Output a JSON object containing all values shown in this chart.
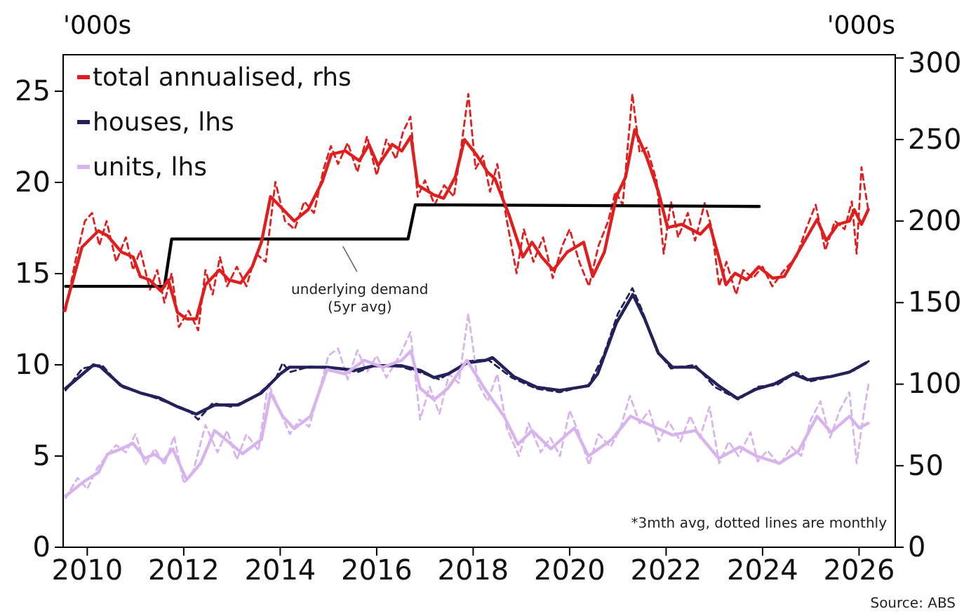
{
  "chart_data": {
    "type": "line",
    "ylabel": "'000s",
    "y2label": "'000s",
    "legend": "top left",
    "grid": false,
    "xlim": [
      2009.5,
      2026.75
    ],
    "xticks": [
      2010,
      2012,
      2014,
      2016,
      2018,
      2020,
      2022,
      2024,
      2026
    ],
    "ylim": [
      0,
      27
    ],
    "yticks": [
      0,
      5,
      10,
      15,
      20,
      25
    ],
    "y2lim": [
      0,
      302
    ],
    "y2ticks": [
      0,
      50,
      100,
      150,
      200,
      250,
      300
    ],
    "annotations": [
      "*3mth avg, dotted lines are monthly",
      "Source: ABS",
      {
        "text": "underlying demand\n(5yr avg)",
        "x": 2015.3,
        "y": 16.8
      }
    ],
    "series": [
      {
        "color": "#e01e1e",
        "axis": "y2",
        "line_style": "dashed",
        "x": [
          2009.55,
          2009.75,
          2009.95,
          2010.1,
          2010.25,
          2010.4,
          2010.6,
          2010.8,
          2010.95,
          2011.1,
          2011.3,
          2011.45,
          2011.6,
          2011.75,
          2011.9,
          2012.1,
          2012.3,
          2012.45,
          2012.6,
          2012.75,
          2012.9,
          2013.1,
          2013.3,
          2013.5,
          2013.7,
          2013.9,
          2014.1,
          2014.3,
          2014.5,
          2014.7,
          2014.9,
          2015.05,
          2015.2,
          2015.4,
          2015.6,
          2015.8,
          2016.0,
          2016.2,
          2016.4,
          2016.55,
          2016.7,
          2016.85,
          2017.0,
          2017.2,
          2017.4,
          2017.6,
          2017.75,
          2017.9,
          2018.05,
          2018.2,
          2018.35,
          2018.5,
          2018.7,
          2018.9,
          2019.05,
          2019.25,
          2019.45,
          2019.65,
          2019.85,
          2020.0,
          2020.2,
          2020.4,
          2020.6,
          2020.8,
          2020.95,
          2021.1,
          2021.3,
          2021.45,
          2021.6,
          2021.8,
          2021.95,
          2022.1,
          2022.25,
          2022.45,
          2022.6,
          2022.8,
          2022.95,
          2023.1,
          2023.25,
          2023.45,
          2023.6,
          2023.8,
          2024.0,
          2024.2,
          2024.45,
          2024.7,
          2024.9,
          2025.1,
          2025.3,
          2025.5,
          2025.7,
          2025.85,
          2025.95,
          2026.05,
          2026.2
        ],
        "values": [
          145,
          175,
          200,
          205,
          185,
          200,
          175,
          190,
          170,
          182,
          158,
          170,
          150,
          168,
          135,
          145,
          133,
          170,
          155,
          178,
          160,
          172,
          160,
          180,
          175,
          224,
          200,
          195,
          212,
          205,
          232,
          246,
          235,
          248,
          230,
          252,
          228,
          250,
          238,
          255,
          264,
          215,
          225,
          210,
          222,
          215,
          245,
          278,
          232,
          240,
          218,
          235,
          200,
          168,
          195,
          175,
          190,
          165,
          185,
          195,
          175,
          160,
          185,
          200,
          218,
          210,
          278,
          242,
          245,
          225,
          180,
          212,
          190,
          205,
          188,
          211,
          195,
          160,
          175,
          155,
          170,
          165,
          172,
          160,
          170,
          178,
          195,
          210,
          182,
          200,
          195,
          212,
          180,
          233,
          205
        ]
      },
      {
        "color": "#23205a",
        "line_style": "dashed",
        "x": [
          2009.55,
          2009.9,
          2010.3,
          2010.7,
          2011.2,
          2011.7,
          2012.1,
          2012.3,
          2012.6,
          2013.0,
          2013.5,
          2013.9,
          2014.05,
          2014.2,
          2014.6,
          2015.2,
          2015.6,
          2016.0,
          2016.5,
          2017.0,
          2017.3,
          2017.9,
          2018.3,
          2018.8,
          2019.3,
          2019.8,
          2020.4,
          2020.7,
          2021.0,
          2021.3,
          2021.5,
          2021.8,
          2022.1,
          2022.6,
          2023.0,
          2023.5,
          2023.9,
          2024.3,
          2024.7,
          2025.0,
          2025.5,
          2025.9,
          2026.2
        ],
        "values": [
          8.6,
          9.8,
          10.0,
          8.8,
          8.4,
          7.9,
          7.5,
          7.0,
          7.9,
          7.7,
          8.3,
          9.2,
          10.1,
          9.6,
          9.9,
          9.8,
          9.6,
          10.0,
          9.9,
          9.5,
          9.2,
          10.2,
          10.3,
          9.3,
          8.7,
          8.5,
          8.9,
          10.5,
          12.8,
          14.2,
          13.0,
          10.8,
          9.8,
          10.0,
          8.8,
          8.1,
          8.8,
          8.9,
          9.6,
          9.1,
          9.4,
          9.7,
          10.2
        ]
      },
      {
        "color": "#d8b4ee",
        "line_style": "dashed",
        "x": [
          2009.55,
          2009.8,
          2010.0,
          2010.2,
          2010.4,
          2010.6,
          2010.8,
          2011.0,
          2011.2,
          2011.4,
          2011.6,
          2011.8,
          2012.0,
          2012.2,
          2012.45,
          2012.7,
          2012.9,
          2013.1,
          2013.3,
          2013.55,
          2013.75,
          2014.0,
          2014.2,
          2014.4,
          2014.6,
          2014.8,
          2015.0,
          2015.2,
          2015.4,
          2015.6,
          2015.8,
          2016.0,
          2016.2,
          2016.5,
          2016.7,
          2016.9,
          2017.1,
          2017.3,
          2017.5,
          2017.7,
          2017.9,
          2018.1,
          2018.3,
          2018.5,
          2018.7,
          2018.95,
          2019.15,
          2019.4,
          2019.6,
          2019.8,
          2020.0,
          2020.2,
          2020.4,
          2020.6,
          2020.85,
          2021.05,
          2021.25,
          2021.45,
          2021.65,
          2021.85,
          2022.05,
          2022.3,
          2022.5,
          2022.7,
          2022.9,
          2023.1,
          2023.3,
          2023.5,
          2023.75,
          2023.9,
          2024.1,
          2024.35,
          2024.6,
          2024.8,
          2025.0,
          2025.2,
          2025.4,
          2025.6,
          2025.8,
          2025.95,
          2026.1,
          2026.2
        ],
        "values": [
          2.7,
          3.8,
          3.2,
          4.3,
          5.0,
          5.6,
          5.2,
          6.2,
          4.5,
          5.4,
          4.5,
          6.1,
          3.5,
          4.2,
          6.7,
          5.2,
          6.4,
          4.8,
          6.2,
          5.3,
          9.0,
          7.4,
          6.2,
          7.0,
          6.6,
          8.5,
          10.5,
          10.9,
          9.2,
          10.8,
          9.6,
          10.5,
          9.3,
          10.6,
          11.8,
          7.0,
          8.8,
          7.3,
          9.5,
          9.0,
          12.8,
          9.0,
          8.0,
          9.5,
          6.5,
          5.0,
          6.8,
          5.2,
          6.0,
          5.0,
          7.5,
          6.2,
          4.5,
          6.2,
          5.5,
          6.5,
          8.3,
          6.8,
          7.5,
          5.8,
          6.9,
          5.8,
          7.2,
          6.0,
          7.7,
          4.6,
          5.8,
          5.0,
          6.3,
          4.7,
          5.3,
          4.5,
          5.5,
          5.0,
          7.0,
          8.0,
          6.0,
          7.5,
          8.5,
          4.6,
          7.4,
          9.0
        ]
      },
      {
        "color": "#000000",
        "axis": "y2",
        "x": [
          2009.55,
          2011.6,
          2011.75,
          2016.65,
          2016.8,
          2023.93
        ],
        "values": [
          160,
          160,
          189,
          189,
          210,
          209
        ]
      },
      {
        "name": "total annualised, rhs",
        "color": "#e01e1e",
        "axis": "y2",
        "x": [
          2009.53,
          2009.89,
          2010.23,
          2010.42,
          2010.71,
          2010.95,
          2011.1,
          2011.29,
          2011.53,
          2011.68,
          2011.87,
          2012.06,
          2012.26,
          2012.45,
          2012.74,
          2012.93,
          2013.18,
          2013.42,
          2013.61,
          2013.8,
          2014.0,
          2014.29,
          2014.58,
          2014.87,
          2015.06,
          2015.35,
          2015.64,
          2015.84,
          2016.03,
          2016.32,
          2016.52,
          2016.71,
          2016.85,
          2017.19,
          2017.39,
          2017.63,
          2017.82,
          2018.06,
          2018.3,
          2018.45,
          2018.74,
          2019.03,
          2019.22,
          2019.42,
          2019.66,
          2019.95,
          2020.29,
          2020.48,
          2020.72,
          2020.97,
          2021.16,
          2021.35,
          2021.6,
          2021.84,
          2022.03,
          2022.32,
          2022.71,
          2022.9,
          2023.09,
          2023.24,
          2023.43,
          2023.67,
          2023.92,
          2024.21,
          2024.45,
          2024.74,
          2025.13,
          2025.32,
          2025.56,
          2025.8,
          2025.9,
          2026.05,
          2026.19
        ],
        "values": [
          145,
          184,
          194,
          191,
          181,
          178,
          166,
          164,
          157,
          164,
          144,
          140,
          140,
          161,
          170,
          164,
          162,
          172,
          187,
          215,
          209,
          200,
          207,
          224,
          241,
          243,
          237,
          247,
          234,
          247,
          243,
          252,
          222,
          216,
          214,
          227,
          250,
          241,
          230,
          226,
          204,
          178,
          187,
          178,
          170,
          181,
          187,
          166,
          181,
          215,
          227,
          256,
          239,
          218,
          196,
          198,
          192,
          198,
          178,
          161,
          168,
          164,
          172,
          165,
          166,
          181,
          201,
          188,
          198,
          200,
          207,
          198,
          207
        ]
      },
      {
        "name": "houses, lhs",
        "color": "#23205a",
        "x": [
          2009.55,
          2010.13,
          2010.27,
          2010.71,
          2011.1,
          2011.48,
          2011.87,
          2012.26,
          2012.64,
          2013.13,
          2013.61,
          2014.0,
          2014.19,
          2014.97,
          2015.55,
          2015.94,
          2016.52,
          2016.9,
          2017.19,
          2017.48,
          2017.87,
          2018.26,
          2018.4,
          2018.84,
          2019.32,
          2019.8,
          2020.39,
          2020.58,
          2020.97,
          2021.31,
          2021.55,
          2021.84,
          2022.13,
          2022.61,
          2023.09,
          2023.48,
          2023.87,
          2024.26,
          2024.64,
          2024.93,
          2025.42,
          2025.8,
          2026.14
        ],
        "values": [
          8.7,
          10.0,
          9.9,
          8.85,
          8.46,
          8.2,
          7.7,
          7.3,
          7.8,
          7.8,
          8.46,
          9.5,
          9.87,
          9.87,
          9.7,
          9.95,
          9.95,
          9.7,
          9.3,
          9.5,
          10.1,
          10.25,
          10.4,
          9.36,
          8.77,
          8.6,
          8.85,
          9.5,
          12.3,
          13.85,
          12.56,
          10.64,
          9.87,
          9.87,
          8.85,
          8.15,
          8.67,
          8.97,
          9.5,
          9.18,
          9.36,
          9.6,
          10.1
        ]
      },
      {
        "name": "units, lhs",
        "color": "#d8b4ee",
        "x": [
          2009.55,
          2009.93,
          2010.23,
          2010.42,
          2010.71,
          2010.95,
          2011.19,
          2011.39,
          2011.58,
          2011.77,
          2012.06,
          2012.35,
          2012.64,
          2012.93,
          2013.22,
          2013.61,
          2013.8,
          2014.05,
          2014.29,
          2014.63,
          2014.97,
          2015.35,
          2015.74,
          2016.13,
          2016.52,
          2016.71,
          2016.9,
          2017.19,
          2017.48,
          2017.87,
          2018.26,
          2018.64,
          2018.93,
          2019.22,
          2019.61,
          2020.1,
          2020.39,
          2020.87,
          2021.26,
          2021.69,
          2022.13,
          2022.61,
          2023.09,
          2023.53,
          2023.87,
          2024.35,
          2024.74,
          2025.13,
          2025.42,
          2025.8,
          2026.0,
          2026.19
        ],
        "values": [
          2.8,
          3.6,
          4.1,
          5.1,
          5.4,
          5.7,
          4.87,
          5.1,
          4.74,
          5.4,
          3.7,
          4.6,
          6.4,
          5.77,
          5.13,
          5.9,
          8.46,
          7.18,
          6.5,
          7.18,
          9.74,
          9.5,
          10.25,
          9.87,
          10.25,
          10.77,
          8.72,
          8.08,
          8.72,
          10.25,
          8.6,
          7.18,
          5.64,
          6.4,
          5.4,
          6.54,
          5.0,
          5.9,
          7.18,
          6.67,
          6.15,
          6.4,
          4.87,
          5.5,
          5.0,
          4.6,
          5.26,
          7.18,
          6.3,
          7.18,
          6.54,
          6.8
        ]
      }
    ]
  }
}
